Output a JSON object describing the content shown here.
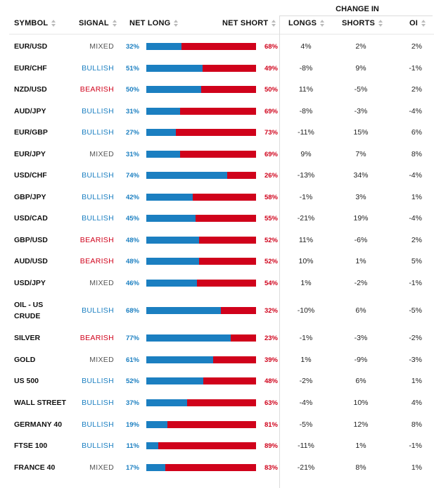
{
  "header": {
    "symbol": "SYMBOL",
    "signal": "SIGNAL",
    "net_long": "NET LONG",
    "net_short": "NET SHORT",
    "change_in": "CHANGE IN",
    "longs": "LONGS",
    "shorts": "SHORTS",
    "oi": "OI"
  },
  "colors": {
    "long": "#1b7fc1",
    "short": "#d0021b",
    "mixed": "#555555"
  },
  "rows": [
    {
      "symbol": "EUR/USD",
      "signal": "MIXED",
      "net_long": "32%",
      "net_short": "68%",
      "long_pct": 32,
      "longs": "4%",
      "shorts": "2%",
      "oi": "2%"
    },
    {
      "symbol": "EUR/CHF",
      "signal": "BULLISH",
      "net_long": "51%",
      "net_short": "49%",
      "long_pct": 51,
      "longs": "-8%",
      "shorts": "9%",
      "oi": "-1%"
    },
    {
      "symbol": "NZD/USD",
      "signal": "BEARISH",
      "net_long": "50%",
      "net_short": "50%",
      "long_pct": 50,
      "longs": "11%",
      "shorts": "-5%",
      "oi": "2%"
    },
    {
      "symbol": "AUD/JPY",
      "signal": "BULLISH",
      "net_long": "31%",
      "net_short": "69%",
      "long_pct": 31,
      "longs": "-8%",
      "shorts": "-3%",
      "oi": "-4%"
    },
    {
      "symbol": "EUR/GBP",
      "signal": "BULLISH",
      "net_long": "27%",
      "net_short": "73%",
      "long_pct": 27,
      "longs": "-11%",
      "shorts": "15%",
      "oi": "6%"
    },
    {
      "symbol": "EUR/JPY",
      "signal": "MIXED",
      "net_long": "31%",
      "net_short": "69%",
      "long_pct": 31,
      "longs": "9%",
      "shorts": "7%",
      "oi": "8%"
    },
    {
      "symbol": "USD/CHF",
      "signal": "BULLISH",
      "net_long": "74%",
      "net_short": "26%",
      "long_pct": 74,
      "longs": "-13%",
      "shorts": "34%",
      "oi": "-4%"
    },
    {
      "symbol": "GBP/JPY",
      "signal": "BULLISH",
      "net_long": "42%",
      "net_short": "58%",
      "long_pct": 42,
      "longs": "-1%",
      "shorts": "3%",
      "oi": "1%"
    },
    {
      "symbol": "USD/CAD",
      "signal": "BULLISH",
      "net_long": "45%",
      "net_short": "55%",
      "long_pct": 45,
      "longs": "-21%",
      "shorts": "19%",
      "oi": "-4%"
    },
    {
      "symbol": "GBP/USD",
      "signal": "BEARISH",
      "net_long": "48%",
      "net_short": "52%",
      "long_pct": 48,
      "longs": "11%",
      "shorts": "-6%",
      "oi": "2%"
    },
    {
      "symbol": "AUD/USD",
      "signal": "BEARISH",
      "net_long": "48%",
      "net_short": "52%",
      "long_pct": 48,
      "longs": "10%",
      "shorts": "1%",
      "oi": "5%"
    },
    {
      "symbol": "USD/JPY",
      "signal": "MIXED",
      "net_long": "46%",
      "net_short": "54%",
      "long_pct": 46,
      "longs": "1%",
      "shorts": "-2%",
      "oi": "-1%"
    },
    {
      "symbol": "OIL - US\nCRUDE",
      "signal": "BULLISH",
      "net_long": "68%",
      "net_short": "32%",
      "long_pct": 68,
      "longs": "-10%",
      "shorts": "6%",
      "oi": "-5%"
    },
    {
      "symbol": "SILVER",
      "signal": "BEARISH",
      "net_long": "77%",
      "net_short": "23%",
      "long_pct": 77,
      "longs": "-1%",
      "shorts": "-3%",
      "oi": "-2%"
    },
    {
      "symbol": "GOLD",
      "signal": "MIXED",
      "net_long": "61%",
      "net_short": "39%",
      "long_pct": 61,
      "longs": "1%",
      "shorts": "-9%",
      "oi": "-3%"
    },
    {
      "symbol": "US 500",
      "signal": "BULLISH",
      "net_long": "52%",
      "net_short": "48%",
      "long_pct": 52,
      "longs": "-2%",
      "shorts": "6%",
      "oi": "1%"
    },
    {
      "symbol": "WALL STREET",
      "signal": "BULLISH",
      "net_long": "37%",
      "net_short": "63%",
      "long_pct": 37,
      "longs": "-4%",
      "shorts": "10%",
      "oi": "4%"
    },
    {
      "symbol": "GERMANY 40",
      "signal": "BULLISH",
      "net_long": "19%",
      "net_short": "81%",
      "long_pct": 19,
      "longs": "-5%",
      "shorts": "12%",
      "oi": "8%"
    },
    {
      "symbol": "FTSE 100",
      "signal": "BULLISH",
      "net_long": "11%",
      "net_short": "89%",
      "long_pct": 11,
      "longs": "-11%",
      "shorts": "1%",
      "oi": "-1%"
    },
    {
      "symbol": "FRANCE 40",
      "signal": "MIXED",
      "net_long": "17%",
      "net_short": "83%",
      "long_pct": 17,
      "longs": "-21%",
      "shorts": "8%",
      "oi": "1%"
    }
  ]
}
